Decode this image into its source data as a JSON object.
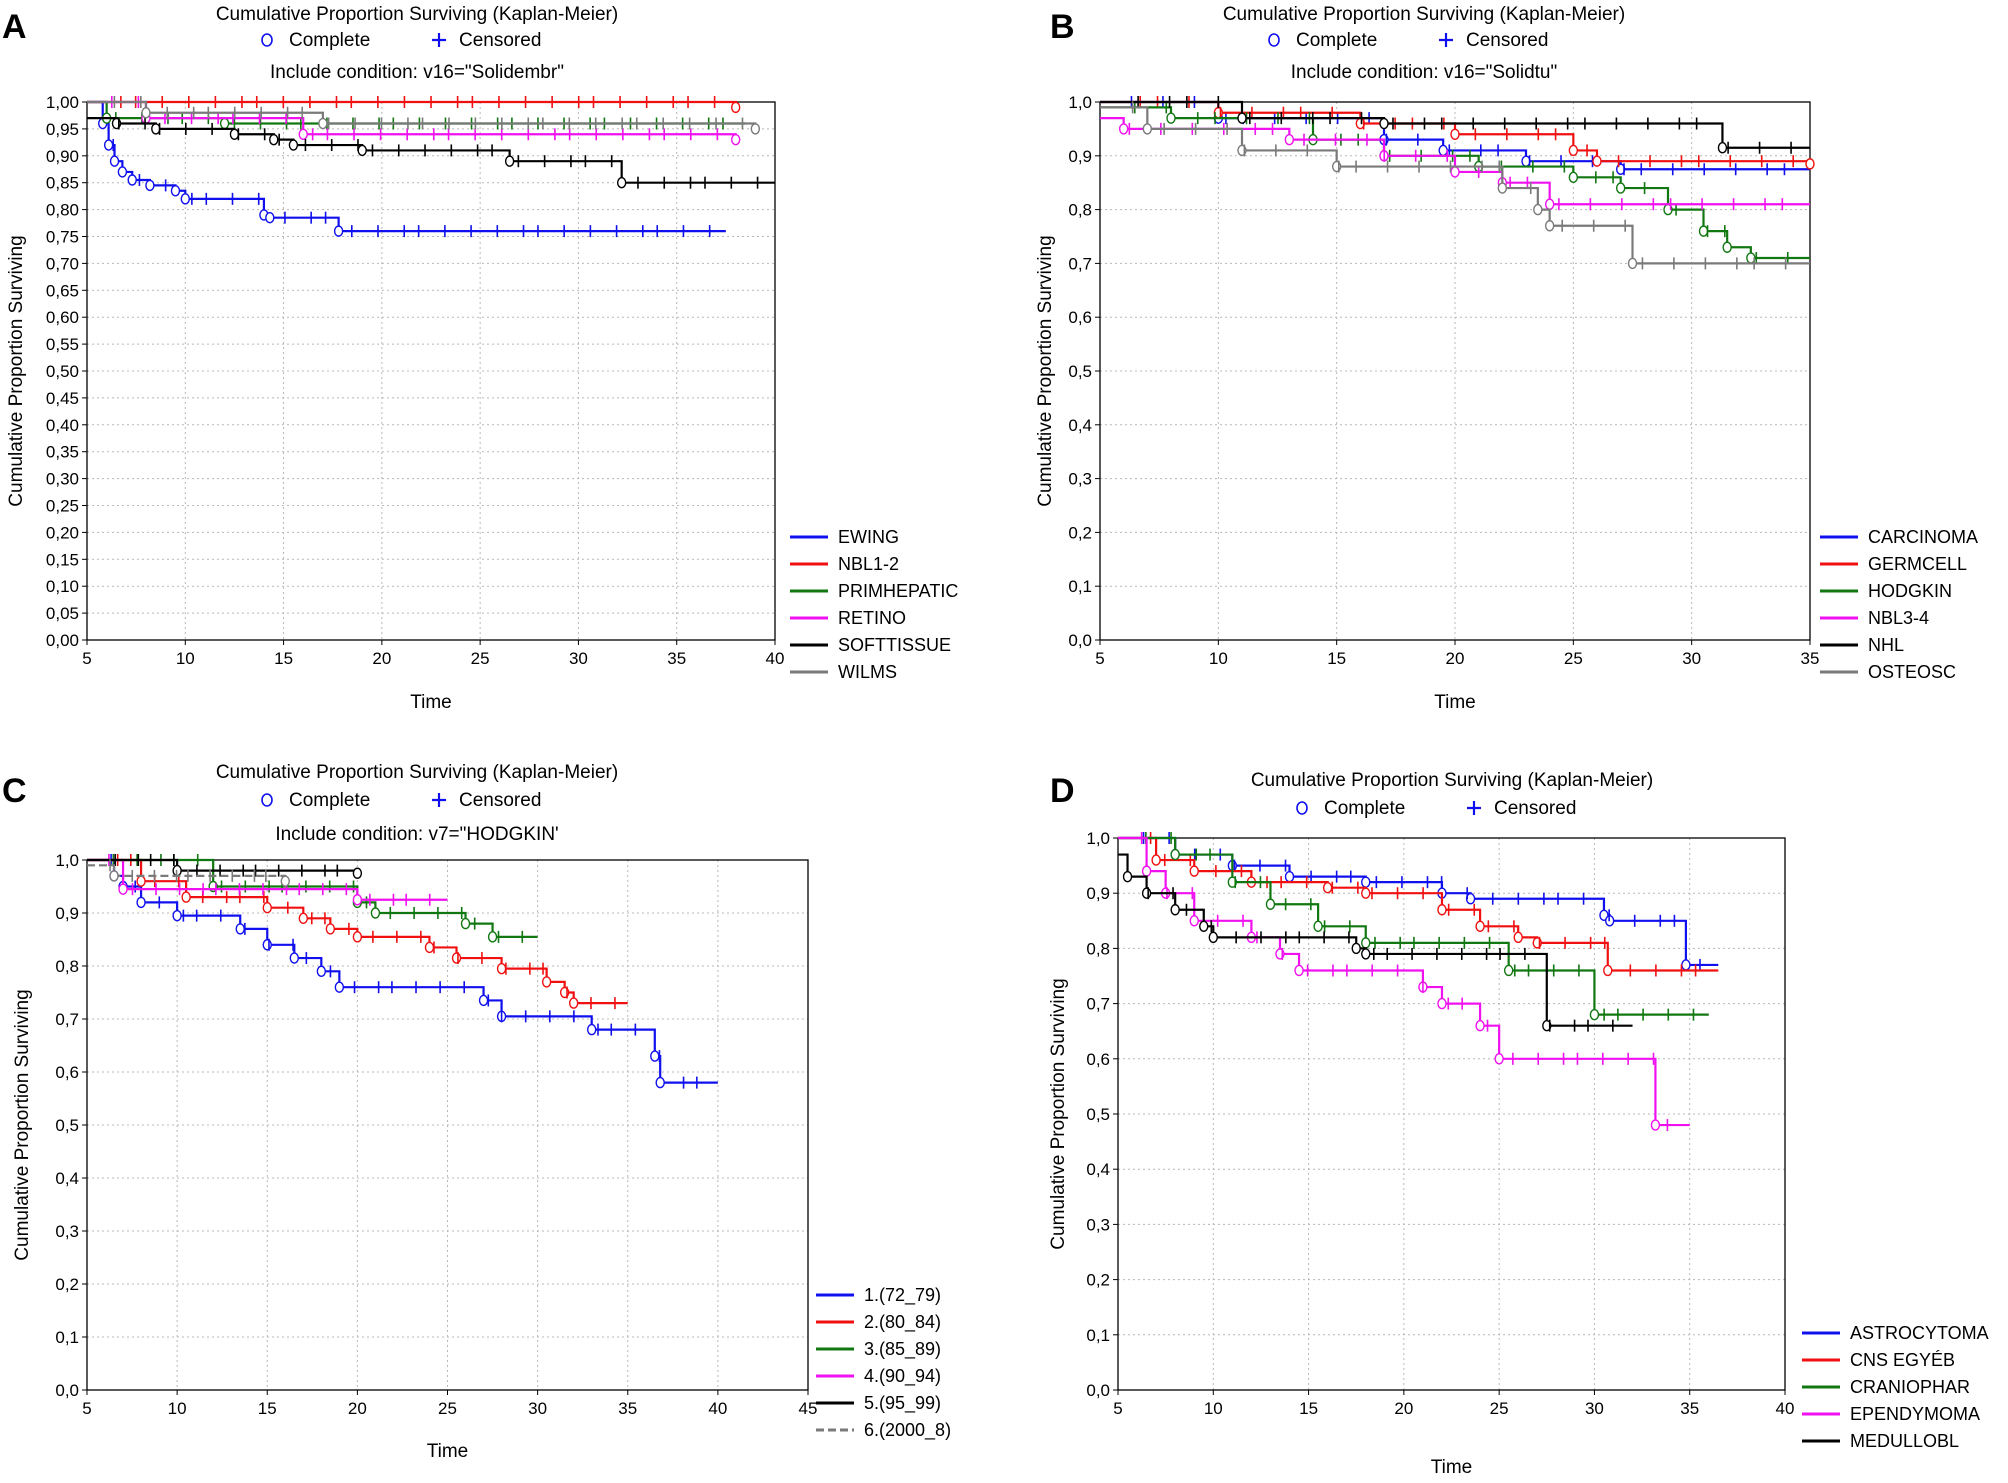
{
  "figure": {
    "panels": [
      "A",
      "B",
      "C",
      "D"
    ]
  },
  "colors": {
    "blue": "#1010ee",
    "red": "#f01010",
    "green": "#117711",
    "magenta": "#f010f0",
    "black": "#000000",
    "gray": "#7a7a7a",
    "grid": "#b8b8b8"
  },
  "chart_data": [
    {
      "type": "line",
      "panel": "A",
      "title": "Cumulative Proportion Surviving (Kaplan-Meier)",
      "marker_legend": {
        "complete": "Complete",
        "censored": "Censored"
      },
      "condition": "Include condition: v16=\"Solidembr\"",
      "xlabel": "Time",
      "ylabel": "Cumulative Proportion Surviving",
      "xlim": [
        5,
        40
      ],
      "ylim": [
        0,
        1
      ],
      "xticks": [
        "5",
        "10",
        "15",
        "20",
        "25",
        "30",
        "35",
        "40"
      ],
      "yticks": [
        "0,00",
        "0,05",
        "0,10",
        "0,15",
        "0,20",
        "0,25",
        "0,30",
        "0,35",
        "0,40",
        "0,45",
        "0,50",
        "0,55",
        "0,60",
        "0,65",
        "0,70",
        "0,75",
        "0,80",
        "0,85",
        "0,90",
        "0,95",
        "1,00"
      ],
      "series": [
        {
          "name": "EWING",
          "color": "blue",
          "steps": [
            [
              5,
              1.0
            ],
            [
              5.8,
              0.96
            ],
            [
              6.1,
              0.92
            ],
            [
              6.4,
              0.89
            ],
            [
              6.8,
              0.87
            ],
            [
              7.3,
              0.855
            ],
            [
              8.2,
              0.845
            ],
            [
              9.5,
              0.835
            ],
            [
              10.0,
              0.82
            ],
            [
              14.0,
              0.79
            ],
            [
              14.3,
              0.785
            ],
            [
              17.8,
              0.76
            ],
            [
              37.5,
              0.76
            ]
          ]
        },
        {
          "name": "NBL1-2",
          "color": "red",
          "steps": [
            [
              5,
              1.0
            ],
            [
              38,
              0.99
            ]
          ]
        },
        {
          "name": "PRIMHEPATIC",
          "color": "green",
          "steps": [
            [
              5,
              1.0
            ],
            [
              6,
              0.97
            ],
            [
              12,
              0.96
            ],
            [
              38.5,
              0.96
            ]
          ]
        },
        {
          "name": "RETINO",
          "color": "magenta",
          "steps": [
            [
              5,
              1.0
            ],
            [
              8,
              0.97
            ],
            [
              16,
              0.94
            ],
            [
              38,
              0.93
            ]
          ]
        },
        {
          "name": "SOFTTISSUE",
          "color": "black",
          "steps": [
            [
              5,
              0.97
            ],
            [
              6.5,
              0.96
            ],
            [
              8.5,
              0.95
            ],
            [
              12.5,
              0.94
            ],
            [
              14.5,
              0.93
            ],
            [
              15.5,
              0.92
            ],
            [
              19,
              0.91
            ],
            [
              26.5,
              0.89
            ],
            [
              32.2,
              0.85
            ],
            [
              40,
              0.85
            ]
          ]
        },
        {
          "name": "WILMS",
          "color": "gray",
          "steps": [
            [
              5,
              1.0
            ],
            [
              8,
              0.98
            ],
            [
              17,
              0.96
            ],
            [
              39,
              0.95
            ]
          ]
        }
      ]
    },
    {
      "type": "line",
      "panel": "B",
      "title": "Cumulative Proportion Surviving (Kaplan-Meier)",
      "marker_legend": {
        "complete": "Complete",
        "censored": "Censored"
      },
      "condition": "Include condition: v16=\"Solidtu\"",
      "xlabel": "Time",
      "ylabel": "Cumulative Proportion Surviving",
      "xlim": [
        5,
        35
      ],
      "ylim": [
        0,
        1
      ],
      "xticks": [
        "5",
        "10",
        "15",
        "20",
        "25",
        "30",
        "35"
      ],
      "yticks": [
        "0,0",
        "0,1",
        "0,2",
        "0,3",
        "0,4",
        "0,5",
        "0,6",
        "0,7",
        "0,8",
        "0,9",
        "1,0"
      ],
      "series": [
        {
          "name": "CARCINOMA",
          "color": "blue",
          "steps": [
            [
              5,
              1.0
            ],
            [
              10,
              0.97
            ],
            [
              17,
              0.93
            ],
            [
              19.5,
              0.91
            ],
            [
              23,
              0.89
            ],
            [
              27,
              0.875
            ],
            [
              35,
              0.875
            ]
          ]
        },
        {
          "name": "GERMCELL",
          "color": "red",
          "steps": [
            [
              5,
              1.0
            ],
            [
              10,
              0.98
            ],
            [
              16,
              0.96
            ],
            [
              20,
              0.94
            ],
            [
              25,
              0.91
            ],
            [
              26,
              0.89
            ],
            [
              35,
              0.885
            ]
          ]
        },
        {
          "name": "HODGKIN",
          "color": "green",
          "steps": [
            [
              5,
              0.99
            ],
            [
              8,
              0.97
            ],
            [
              14,
              0.93
            ],
            [
              17,
              0.9
            ],
            [
              21,
              0.88
            ],
            [
              25,
              0.86
            ],
            [
              27,
              0.84
            ],
            [
              29,
              0.8
            ],
            [
              30.5,
              0.76
            ],
            [
              31.5,
              0.73
            ],
            [
              32.5,
              0.71
            ],
            [
              35,
              0.71
            ]
          ]
        },
        {
          "name": "NBL3-4",
          "color": "magenta",
          "steps": [
            [
              5,
              0.97
            ],
            [
              6,
              0.95
            ],
            [
              13,
              0.93
            ],
            [
              17,
              0.9
            ],
            [
              20,
              0.87
            ],
            [
              22,
              0.85
            ],
            [
              24,
              0.81
            ],
            [
              35,
              0.81
            ]
          ]
        },
        {
          "name": "NHL",
          "color": "black",
          "steps": [
            [
              5,
              1.0
            ],
            [
              11,
              0.97
            ],
            [
              17,
              0.96
            ],
            [
              31.3,
              0.915
            ],
            [
              35,
              0.915
            ]
          ]
        },
        {
          "name": "OSTEOSC",
          "color": "gray",
          "steps": [
            [
              5,
              0.99
            ],
            [
              7,
              0.95
            ],
            [
              11,
              0.91
            ],
            [
              15,
              0.88
            ],
            [
              22,
              0.84
            ],
            [
              23.5,
              0.8
            ],
            [
              24,
              0.77
            ],
            [
              27.5,
              0.7
            ],
            [
              35,
              0.7
            ]
          ]
        }
      ]
    },
    {
      "type": "line",
      "panel": "C",
      "title": "Cumulative Proportion Surviving (Kaplan-Meier)",
      "marker_legend": {
        "complete": "Complete",
        "censored": "Censored"
      },
      "condition": "Include condition: v7=\"HODGKIN'",
      "xlabel": "Time",
      "ylabel": "Cumulative Proportion Surviving",
      "xlim": [
        5,
        45
      ],
      "ylim": [
        0,
        1
      ],
      "xticks": [
        "5",
        "10",
        "15",
        "20",
        "25",
        "30",
        "35",
        "40",
        "45"
      ],
      "yticks": [
        "0,0",
        "0,1",
        "0,2",
        "0,3",
        "0,4",
        "0,5",
        "0,6",
        "0,7",
        "0,8",
        "0,9",
        "1,0"
      ],
      "series": [
        {
          "name": "1.(72_79)",
          "color": "blue",
          "steps": [
            [
              5,
              1.0
            ],
            [
              6.5,
              0.97
            ],
            [
              7,
              0.95
            ],
            [
              8,
              0.92
            ],
            [
              10,
              0.895
            ],
            [
              13.5,
              0.87
            ],
            [
              15,
              0.84
            ],
            [
              16.5,
              0.815
            ],
            [
              18,
              0.79
            ],
            [
              19,
              0.76
            ],
            [
              27,
              0.735
            ],
            [
              28,
              0.705
            ],
            [
              33,
              0.68
            ],
            [
              36.5,
              0.63
            ],
            [
              36.8,
              0.58
            ],
            [
              40,
              0.58
            ]
          ]
        },
        {
          "name": "2.(80_84)",
          "color": "red",
          "steps": [
            [
              5,
              1.0
            ],
            [
              8,
              0.96
            ],
            [
              10.5,
              0.93
            ],
            [
              15,
              0.91
            ],
            [
              17,
              0.89
            ],
            [
              18.5,
              0.87
            ],
            [
              20,
              0.855
            ],
            [
              24,
              0.835
            ],
            [
              25.5,
              0.815
            ],
            [
              28,
              0.795
            ],
            [
              30.5,
              0.77
            ],
            [
              31.5,
              0.75
            ],
            [
              32,
              0.73
            ],
            [
              35,
              0.73
            ]
          ]
        },
        {
          "name": "3.(85_89)",
          "color": "green",
          "steps": [
            [
              5,
              1.0
            ],
            [
              12,
              0.95
            ],
            [
              20,
              0.92
            ],
            [
              21,
              0.9
            ],
            [
              26,
              0.88
            ],
            [
              27.5,
              0.855
            ],
            [
              29,
              0.855
            ],
            [
              30,
              0.855
            ]
          ]
        },
        {
          "name": "4.(90_94)",
          "color": "magenta",
          "steps": [
            [
              5,
              1.0
            ],
            [
              7,
              0.945
            ],
            [
              20,
              0.925
            ],
            [
              25,
              0.925
            ]
          ]
        },
        {
          "name": "5.(95_99)",
          "color": "black",
          "steps": [
            [
              5,
              1.0
            ],
            [
              10,
              0.98
            ],
            [
              20,
              0.975
            ]
          ]
        },
        {
          "name": "6.(2000_8)",
          "color": "gray",
          "steps": [
            [
              5,
              0.99
            ],
            [
              6.5,
              0.97
            ],
            [
              16,
              0.96
            ]
          ]
        }
      ]
    },
    {
      "type": "line",
      "panel": "D",
      "title": "Cumulative Proportion Surviving (Kaplan-Meier)",
      "marker_legend": {
        "complete": "Complete",
        "censored": "Censored"
      },
      "condition": "",
      "xlabel": "Time",
      "ylabel": "Cumulative Proportion Surviving",
      "xlim": [
        5,
        40
      ],
      "ylim": [
        0,
        1
      ],
      "xticks": [
        "5",
        "10",
        "15",
        "20",
        "25",
        "30",
        "35",
        "40"
      ],
      "yticks": [
        "0,0",
        "0,1",
        "0,2",
        "0,3",
        "0,4",
        "0,5",
        "0,6",
        "0,7",
        "0,8",
        "0,9",
        "1,0"
      ],
      "series": [
        {
          "name": "ASTROCYTOMA",
          "color": "blue",
          "steps": [
            [
              5,
              1.0
            ],
            [
              8,
              0.97
            ],
            [
              11,
              0.95
            ],
            [
              14,
              0.93
            ],
            [
              18,
              0.92
            ],
            [
              22,
              0.9
            ],
            [
              23.5,
              0.89
            ],
            [
              30.5,
              0.86
            ],
            [
              30.8,
              0.85
            ],
            [
              34.8,
              0.77
            ],
            [
              36.5,
              0.77
            ]
          ]
        },
        {
          "name": "CNS EGYÉB",
          "color": "red",
          "steps": [
            [
              5,
              1.0
            ],
            [
              7,
              0.96
            ],
            [
              9,
              0.94
            ],
            [
              12,
              0.92
            ],
            [
              16,
              0.91
            ],
            [
              18,
              0.9
            ],
            [
              22,
              0.87
            ],
            [
              24,
              0.84
            ],
            [
              26,
              0.82
            ],
            [
              27,
              0.81
            ],
            [
              30.7,
              0.76
            ],
            [
              36.5,
              0.76
            ]
          ]
        },
        {
          "name": "CRANIOPHAR",
          "color": "green",
          "steps": [
            [
              5,
              1.0
            ],
            [
              8,
              0.97
            ],
            [
              11,
              0.92
            ],
            [
              13,
              0.88
            ],
            [
              15.5,
              0.84
            ],
            [
              18,
              0.81
            ],
            [
              25.5,
              0.76
            ],
            [
              30,
              0.68
            ],
            [
              36,
              0.68
            ]
          ]
        },
        {
          "name": "EPENDYMOMA",
          "color": "magenta",
          "steps": [
            [
              5,
              1.0
            ],
            [
              6.5,
              0.94
            ],
            [
              7.5,
              0.9
            ],
            [
              9,
              0.85
            ],
            [
              12,
              0.82
            ],
            [
              13.5,
              0.79
            ],
            [
              14.5,
              0.76
            ],
            [
              21,
              0.73
            ],
            [
              22,
              0.7
            ],
            [
              24,
              0.66
            ],
            [
              25,
              0.6
            ],
            [
              33.2,
              0.48
            ],
            [
              35,
              0.48
            ]
          ]
        },
        {
          "name": "MEDULLOBL",
          "color": "black",
          "steps": [
            [
              5,
              0.97
            ],
            [
              5.5,
              0.93
            ],
            [
              6.5,
              0.9
            ],
            [
              8,
              0.87
            ],
            [
              9.5,
              0.84
            ],
            [
              10,
              0.82
            ],
            [
              17.5,
              0.8
            ],
            [
              18,
              0.79
            ],
            [
              27.5,
              0.66
            ],
            [
              32,
              0.66
            ]
          ]
        }
      ]
    }
  ]
}
